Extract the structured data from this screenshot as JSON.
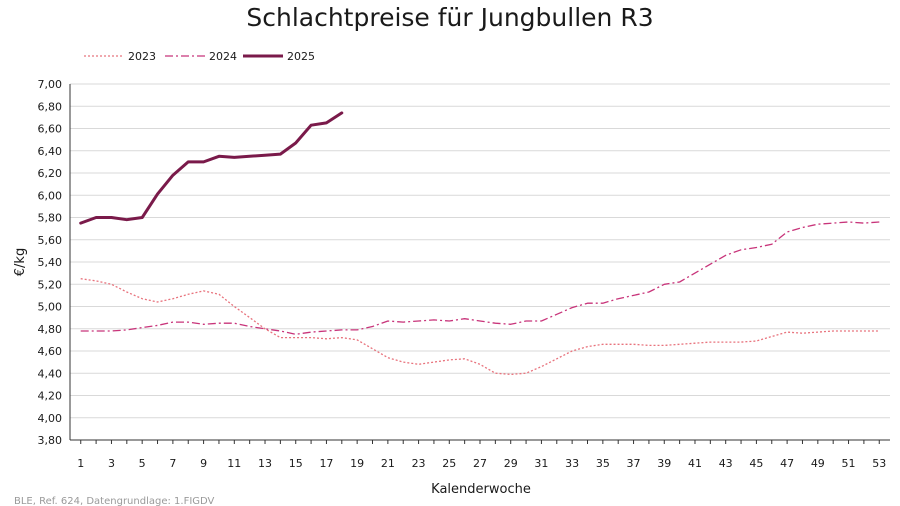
{
  "chart_data": {
    "type": "line",
    "title": "Schlachtpreise für Jungbullen R3",
    "xlabel": "Kalenderwoche",
    "ylabel": "€/kg",
    "xlim": [
      1,
      53
    ],
    "ylim": [
      3.8,
      7.0
    ],
    "xticks": [
      1,
      3,
      5,
      7,
      9,
      11,
      13,
      15,
      17,
      19,
      21,
      23,
      25,
      27,
      29,
      31,
      33,
      35,
      37,
      39,
      41,
      43,
      45,
      47,
      49,
      51,
      53
    ],
    "xtick_labels": [
      "1",
      "3",
      "5",
      "7",
      "9",
      "11",
      "13",
      "15",
      "17",
      "19",
      "21",
      "23",
      "25",
      "27",
      "29",
      "31",
      "33",
      "35",
      "37",
      "39",
      "41",
      "43",
      "45",
      "47",
      "49",
      "51",
      "53"
    ],
    "yticks": [
      3.8,
      4.0,
      4.2,
      4.4,
      4.6,
      4.8,
      5.0,
      5.2,
      5.4,
      5.6,
      5.8,
      6.0,
      6.2,
      6.4,
      6.6,
      6.8,
      7.0
    ],
    "ytick_labels": [
      "3,80",
      "4,00",
      "4,20",
      "4,40",
      "4,60",
      "4,80",
      "5,00",
      "5,20",
      "5,40",
      "5,60",
      "5,80",
      "6,00",
      "6,20",
      "6,40",
      "6,60",
      "6,80",
      "7,00"
    ],
    "grid": "horizontal",
    "legend_position": "top-left",
    "series": [
      {
        "name": "2023",
        "style": "dotted",
        "color": "#e8737d",
        "x": [
          1,
          2,
          3,
          4,
          5,
          6,
          7,
          8,
          9,
          10,
          11,
          12,
          13,
          14,
          15,
          16,
          17,
          18,
          19,
          20,
          21,
          22,
          23,
          24,
          25,
          26,
          27,
          28,
          29,
          30,
          31,
          32,
          33,
          34,
          35,
          36,
          37,
          38,
          39,
          40,
          41,
          42,
          43,
          44,
          45,
          46,
          47,
          48,
          49,
          50,
          51,
          52,
          53
        ],
        "values": [
          5.25,
          5.23,
          5.2,
          5.13,
          5.07,
          5.04,
          5.07,
          5.11,
          5.14,
          5.11,
          5.0,
          4.9,
          4.8,
          4.72,
          4.72,
          4.72,
          4.71,
          4.72,
          4.7,
          4.62,
          4.54,
          4.5,
          4.48,
          4.5,
          4.52,
          4.53,
          4.48,
          4.4,
          4.39,
          4.4,
          4.46,
          4.53,
          4.6,
          4.64,
          4.66,
          4.66,
          4.66,
          4.65,
          4.65,
          4.66,
          4.67,
          4.68,
          4.68,
          4.68,
          4.69,
          4.73,
          4.77,
          4.76,
          4.77,
          4.78,
          4.78,
          4.78,
          4.78
        ]
      },
      {
        "name": "2024",
        "style": "dash-dot",
        "color": "#c8347a",
        "x": [
          1,
          2,
          3,
          4,
          5,
          6,
          7,
          8,
          9,
          10,
          11,
          12,
          13,
          14,
          15,
          16,
          17,
          18,
          19,
          20,
          21,
          22,
          23,
          24,
          25,
          26,
          27,
          28,
          29,
          30,
          31,
          32,
          33,
          34,
          35,
          36,
          37,
          38,
          39,
          40,
          41,
          42,
          43,
          44,
          45,
          46,
          47,
          48,
          49,
          50,
          51,
          52,
          53
        ],
        "values": [
          4.78,
          4.78,
          4.78,
          4.79,
          4.81,
          4.83,
          4.86,
          4.86,
          4.84,
          4.85,
          4.85,
          4.82,
          4.8,
          4.78,
          4.75,
          4.77,
          4.78,
          4.79,
          4.79,
          4.82,
          4.87,
          4.86,
          4.87,
          4.88,
          4.87,
          4.89,
          4.87,
          4.85,
          4.84,
          4.87,
          4.87,
          4.93,
          4.99,
          5.03,
          5.03,
          5.07,
          5.1,
          5.13,
          5.2,
          5.22,
          5.3,
          5.38,
          5.46,
          5.51,
          5.53,
          5.56,
          5.67,
          5.71,
          5.74,
          5.75,
          5.76,
          5.75,
          5.76
        ]
      },
      {
        "name": "2025",
        "style": "solid",
        "color": "#7a1a4a",
        "x": [
          1,
          2,
          3,
          4,
          5,
          6,
          7,
          8,
          9,
          10,
          11,
          12,
          13,
          14,
          15,
          16,
          17,
          18
        ],
        "values": [
          5.75,
          5.8,
          5.8,
          5.78,
          5.8,
          6.01,
          6.18,
          6.3,
          6.3,
          6.35,
          6.34,
          6.35,
          6.36,
          6.37,
          6.47,
          6.63,
          6.65,
          6.74
        ]
      }
    ],
    "source": "BLE, Ref. 624, Datengrundlage: 1.FIGDV"
  }
}
